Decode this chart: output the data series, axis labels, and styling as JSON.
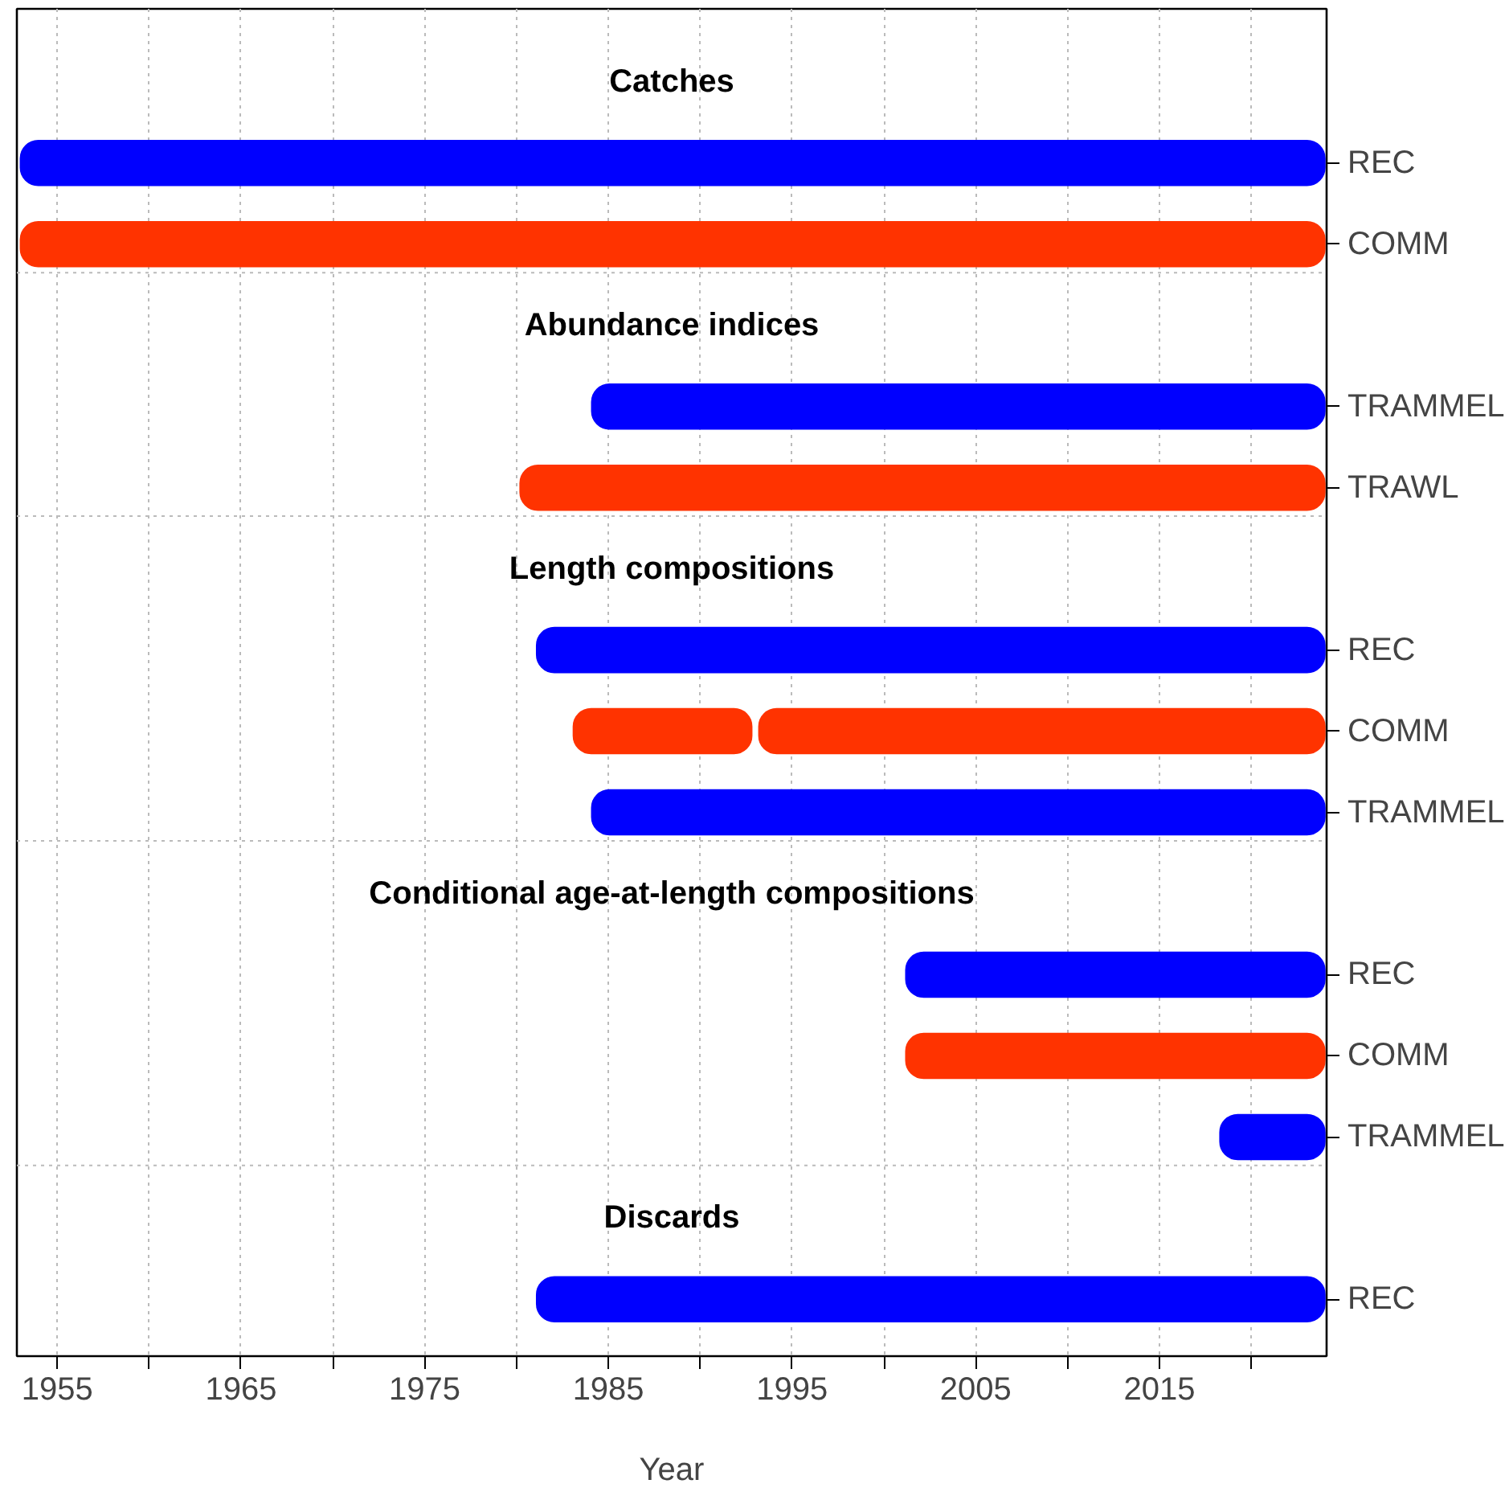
{
  "chart_data": {
    "type": "bar",
    "orientation": "horizontal",
    "xlabel": "Year",
    "categories": [
      null,
      "REC",
      "COMM",
      null,
      "TRAMMEL",
      "TRAWL",
      null,
      "REC",
      "COMM",
      "TRAMMEL",
      null,
      "REC",
      "COMM",
      "TRAMMEL",
      null,
      "REC"
    ],
    "annotations": [
      "Catches",
      "Abundance indices",
      "Length compositions",
      "Conditional age-at-length compositions",
      "Discards"
    ],
    "series": [
      {
        "base": [
          null,
          1953,
          1953,
          null,
          1984.1,
          1980.2,
          null,
          1981.1,
          1983.1,
          1984.1,
          null,
          2001.2,
          2001.2,
          2018.3,
          null,
          1981.1
        ],
        "values": [
          null,
          71,
          71,
          null,
          39.9,
          43.8,
          null,
          42.9,
          9.7,
          39.9,
          null,
          22.8,
          22.8,
          5.7,
          null,
          42.9
        ],
        "colors": [
          null,
          "#0000ff",
          "#ff3300",
          null,
          "#0000ff",
          "#ff3300",
          null,
          "#0000ff",
          "#ff3300",
          "#0000ff",
          null,
          "#0000ff",
          "#ff3300",
          "#0000ff",
          null,
          "#0000ff"
        ]
      },
      {
        "base": [
          null,
          null,
          null,
          null,
          null,
          null,
          null,
          null,
          1993.2,
          null,
          null,
          null,
          null,
          null,
          null,
          null
        ],
        "values": [
          null,
          null,
          null,
          null,
          null,
          null,
          null,
          null,
          30.8,
          null,
          null,
          null,
          null,
          null,
          null,
          null
        ],
        "colors": [
          null,
          null,
          null,
          null,
          null,
          null,
          null,
          null,
          "#ff3300",
          null,
          null,
          null,
          null,
          null,
          null,
          null
        ]
      }
    ],
    "xlim": [
      1952.8,
      2024.1
    ],
    "xticks": [
      1955,
      {
        "value": 1960,
        "label": null
      },
      1965,
      {
        "value": 1970,
        "label": null
      },
      1975,
      {
        "value": 1980,
        "label": null
      },
      1985,
      {
        "value": 1990,
        "label": null
      },
      1995,
      {
        "value": 2000,
        "label": null
      },
      2005,
      {
        "value": 2010,
        "label": null
      },
      2015,
      {
        "value": 2020,
        "label": null
      }
    ],
    "grid": "x"
  }
}
